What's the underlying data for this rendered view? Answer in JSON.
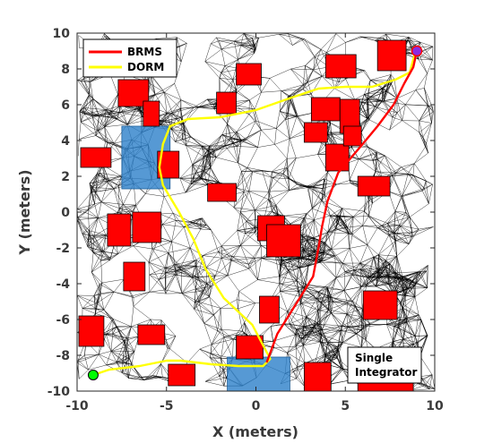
{
  "chart_data": {
    "type": "line",
    "xlabel": "X (meters)",
    "ylabel": "Y (meters)",
    "xlim": [
      -10,
      10
    ],
    "ylim": [
      -10,
      10
    ],
    "xticks": [
      -10,
      -5,
      0,
      5,
      10
    ],
    "yticks": [
      -10,
      -8,
      -6,
      -4,
      -2,
      0,
      2,
      4,
      6,
      8,
      10
    ],
    "xtick_labels": [
      "-10",
      "-5",
      "0",
      "5",
      "10"
    ],
    "ytick_labels": [
      "-10",
      "-8",
      "-6",
      "-4",
      "-2",
      "0",
      "2",
      "4",
      "6",
      "8",
      "10"
    ],
    "legend_position": "top-left",
    "annotation": [
      "Single",
      "Integrator"
    ],
    "colors": {
      "brms": "#ff0000",
      "dorm": "#ffff00",
      "obstacle": "#ff0000",
      "region": "#2c7fc9",
      "start": "#00ff00",
      "goal": "#8a2be2",
      "roadmap": "#000000"
    },
    "series": [
      {
        "name": "BRMS",
        "color": "#ff0000",
        "x": [
          0.6,
          1.2,
          2.2,
          3.2,
          3.5,
          3.7,
          4.0,
          4.6,
          5.8,
          6.8,
          7.7,
          8.3,
          8.8,
          9.0
        ],
        "y": [
          -8.4,
          -6.8,
          -5.2,
          -3.6,
          -2.0,
          -0.8,
          0.6,
          2.2,
          3.6,
          4.8,
          6.0,
          7.2,
          8.1,
          9.0
        ]
      },
      {
        "name": "DORM",
        "color": "#ffff00",
        "x": [
          -9.1,
          -8.2,
          -6.5,
          -5.0,
          -4.2,
          -2.5,
          -1.0,
          0.4,
          0.8,
          -0.2,
          -1.8,
          -2.8,
          -3.5,
          -4.3,
          -5.2,
          -5.4,
          -5.2,
          -4.8,
          -3.8,
          -2.0,
          0.0,
          2.0,
          3.5,
          5.0,
          6.5,
          7.8,
          8.6,
          8.9
        ],
        "y": [
          -9.1,
          -8.8,
          -8.6,
          -8.3,
          -8.3,
          -8.5,
          -8.6,
          -8.6,
          -8.2,
          -6.3,
          -4.8,
          -3.2,
          -1.5,
          0.0,
          1.5,
          2.5,
          3.8,
          4.8,
          5.2,
          5.3,
          5.7,
          6.4,
          6.9,
          7.0,
          7.0,
          7.4,
          7.8,
          8.9
        ]
      }
    ],
    "start": [
      -9.1,
      -9.1
    ],
    "goal": [
      9.0,
      9.0
    ],
    "regions": [
      {
        "x0": -7.5,
        "x1": -4.8,
        "y0": 1.3,
        "y1": 4.8
      },
      {
        "x0": -1.6,
        "x1": 1.9,
        "y0": -10.0,
        "y1": -8.1
      }
    ],
    "obstacles": [
      {
        "x0": -9.8,
        "x1": -8.1,
        "y0": 2.5,
        "y1": 3.6
      },
      {
        "x0": -7.7,
        "x1": -6.0,
        "y0": 5.9,
        "y1": 7.4
      },
      {
        "x0": -6.3,
        "x1": -5.4,
        "y0": 4.8,
        "y1": 6.2
      },
      {
        "x0": -5.5,
        "x1": -4.3,
        "y0": 1.9,
        "y1": 3.4
      },
      {
        "x0": -2.2,
        "x1": -1.1,
        "y0": 5.5,
        "y1": 6.7
      },
      {
        "x0": -1.1,
        "x1": 0.3,
        "y0": 7.1,
        "y1": 8.3
      },
      {
        "x0": -2.7,
        "x1": -1.1,
        "y0": 0.6,
        "y1": 1.6
      },
      {
        "x0": -8.3,
        "x1": -7.0,
        "y0": -1.9,
        "y1": -0.1
      },
      {
        "x0": -6.9,
        "x1": -5.3,
        "y0": -1.7,
        "y1": 0.0
      },
      {
        "x0": -7.4,
        "x1": -6.2,
        "y0": -4.4,
        "y1": -2.8
      },
      {
        "x0": -9.9,
        "x1": -8.5,
        "y0": -7.5,
        "y1": -5.8
      },
      {
        "x0": -6.6,
        "x1": -5.1,
        "y0": -7.4,
        "y1": -6.3
      },
      {
        "x0": -4.9,
        "x1": -3.4,
        "y0": -9.7,
        "y1": -8.5
      },
      {
        "x0": -1.1,
        "x1": 0.4,
        "y0": -8.2,
        "y1": -6.9
      },
      {
        "x0": 0.2,
        "x1": 1.3,
        "y0": -6.2,
        "y1": -4.7
      },
      {
        "x0": 0.1,
        "x1": 1.6,
        "y0": -1.6,
        "y1": -0.2
      },
      {
        "x0": 0.6,
        "x1": 2.5,
        "y0": -2.5,
        "y1": -0.7
      },
      {
        "x0": 2.7,
        "x1": 4.2,
        "y0": -10.0,
        "y1": -8.4
      },
      {
        "x0": 2.7,
        "x1": 4.0,
        "y0": 3.9,
        "y1": 5.0
      },
      {
        "x0": 3.1,
        "x1": 4.7,
        "y0": 5.1,
        "y1": 6.4
      },
      {
        "x0": 3.9,
        "x1": 5.2,
        "y0": 2.3,
        "y1": 3.8
      },
      {
        "x0": 4.7,
        "x1": 5.8,
        "y0": 4.4,
        "y1": 6.3
      },
      {
        "x0": 4.9,
        "x1": 5.9,
        "y0": 3.7,
        "y1": 4.8
      },
      {
        "x0": 3.9,
        "x1": 5.6,
        "y0": 7.5,
        "y1": 8.8
      },
      {
        "x0": 5.7,
        "x1": 7.5,
        "y0": 0.9,
        "y1": 2.0
      },
      {
        "x0": 6.8,
        "x1": 8.4,
        "y0": 7.9,
        "y1": 9.6
      },
      {
        "x0": 6.0,
        "x1": 7.9,
        "y0": -6.0,
        "y1": -4.4
      },
      {
        "x0": 5.7,
        "x1": 8.8,
        "y0": -10.0,
        "y1": -9.5
      }
    ]
  }
}
